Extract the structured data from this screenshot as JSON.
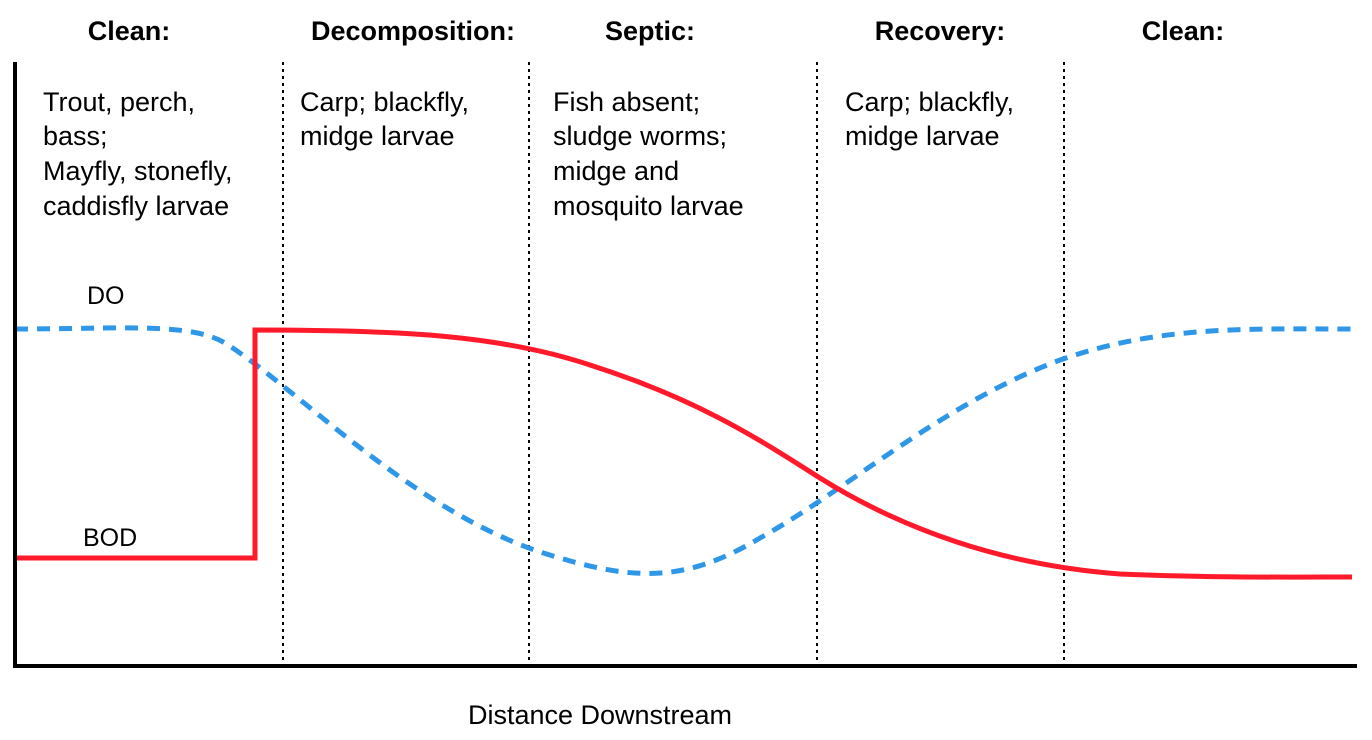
{
  "zones": [
    {
      "title": "Clean:",
      "lines": [
        "Trout, perch,",
        "bass;",
        "Mayfly, stonefly,",
        "caddisfly larvae"
      ]
    },
    {
      "title": "Decomposition:",
      "lines": [
        "Carp; blackfly,",
        "midge larvae"
      ]
    },
    {
      "title": "Septic:",
      "lines": [
        "Fish absent;",
        "sludge worms;",
        "midge and",
        "mosquito larvae"
      ]
    },
    {
      "title": "Recovery:",
      "lines": [
        "Carp; blackfly,",
        "midge larvae"
      ]
    },
    {
      "title": "Clean:",
      "lines": []
    }
  ],
  "curves": {
    "do": {
      "label": "DO",
      "color": "#2e97e8",
      "style": "dashed"
    },
    "bod": {
      "label": "BOD",
      "color": "#ff1a2b",
      "style": "solid"
    }
  },
  "axis": {
    "xlabel": "Distance Downstream"
  }
}
